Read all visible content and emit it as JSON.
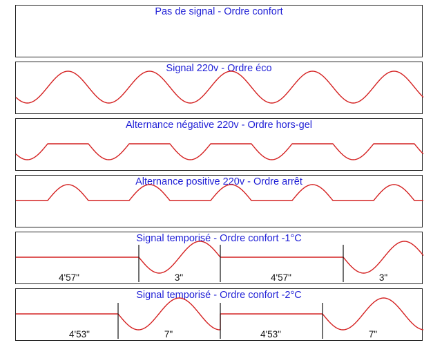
{
  "panels": [
    {
      "title": "Pas de signal - Ordre confort",
      "waveform": "none"
    },
    {
      "title": "Signal 220v - Ordre éco",
      "waveform": "full-sine"
    },
    {
      "title": "Alternance négative 220v - Ordre hors-gel",
      "waveform": "negative-half"
    },
    {
      "title": "Alternance positive 220v - Ordre arrêt",
      "waveform": "positive-half"
    },
    {
      "title": "Signal temporisé - Ordre confort -1°C",
      "waveform": "timed",
      "durations": [
        "4'57\"",
        "3\"",
        "4'57\"",
        "3\""
      ]
    },
    {
      "title": "Signal temporisé - Ordre confort -2°C",
      "waveform": "timed",
      "durations": [
        "4'53\"",
        "7\"",
        "4'53\"",
        "7\""
      ]
    }
  ],
  "colors": {
    "title": "#1f1fd6",
    "signal": "#d42020",
    "border": "#222222"
  }
}
